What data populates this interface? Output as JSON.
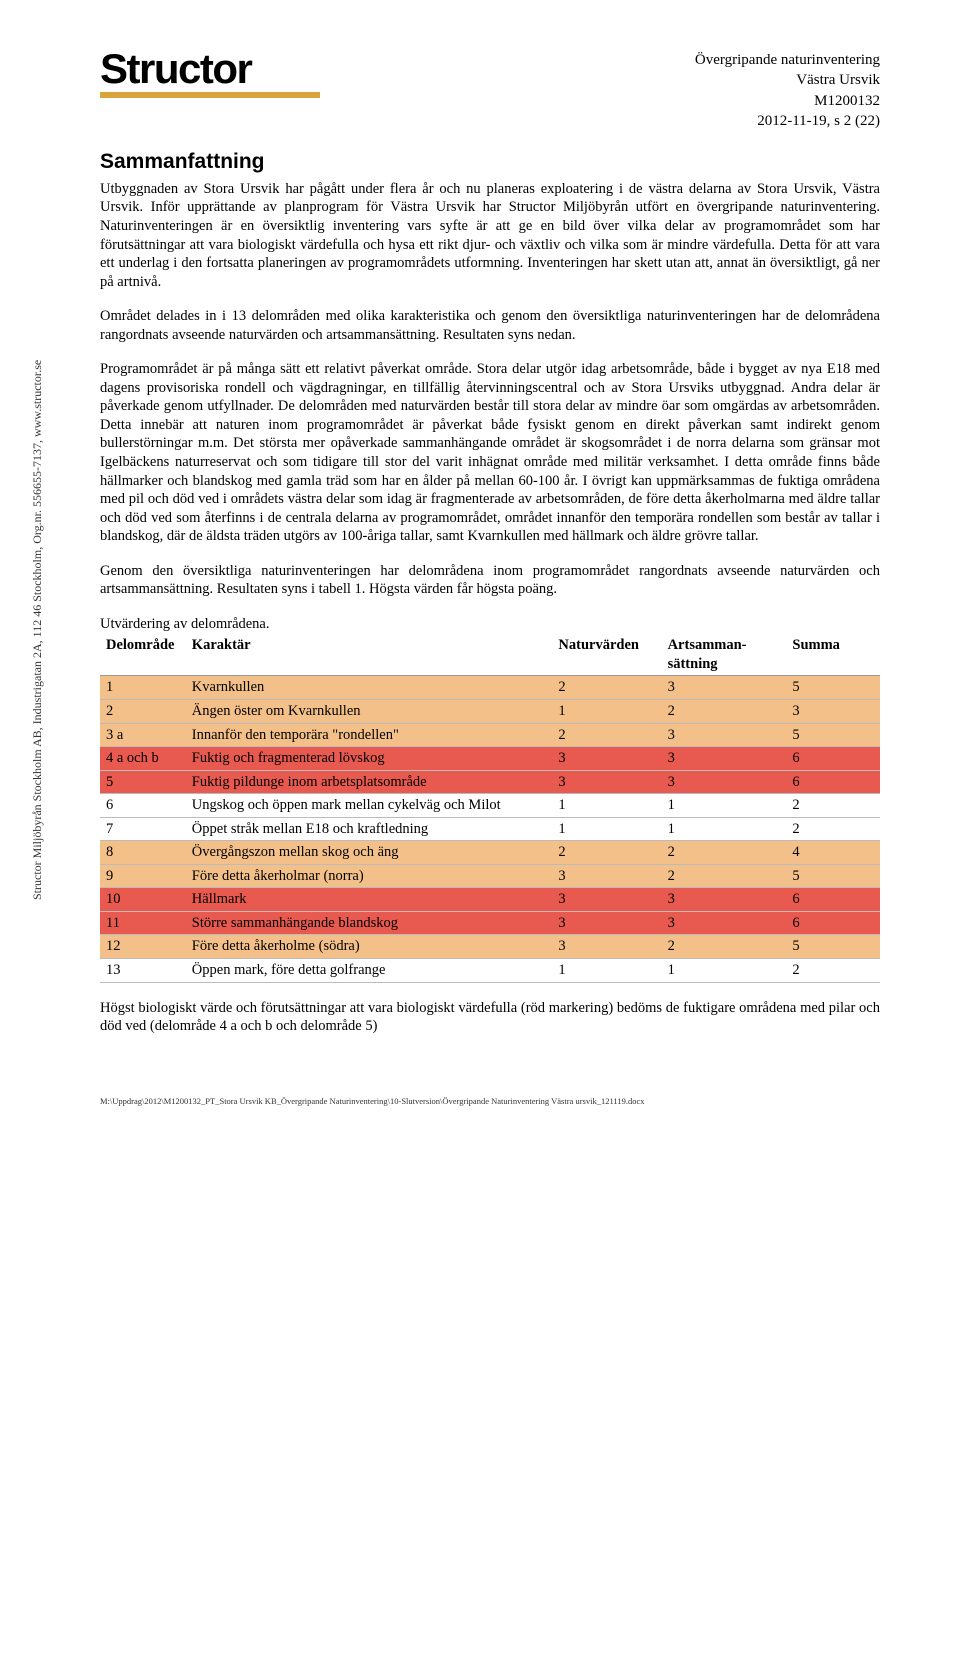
{
  "logo": {
    "text": "Structor"
  },
  "side_text": "Structor Miljöbyrån Stockholm AB, Industrigatan 2A, 112 46 Stockholm, Org.nr. 556655-7137, www.structor.se",
  "header_meta": {
    "line1": "Övergripande naturinventering",
    "line2": "Västra Ursvik",
    "line3": "M1200132",
    "line4": "2012-11-19, s 2 (22)"
  },
  "section_title": "Sammanfattning",
  "paragraphs": {
    "p1": "Utbyggnaden av Stora Ursvik har pågått under flera år och nu planeras exploatering i de västra delarna av Stora Ursvik, Västra Ursvik. Inför upprättande av planprogram för Västra Ursvik har Structor Miljöbyrån utfört en övergripande naturinventering. Naturinventeringen är en översiktlig inventering vars syfte är att ge en bild över vilka delar av programområdet som har förutsättningar att vara biologiskt värdefulla och hysa ett rikt djur- och växtliv och vilka som är mindre värdefulla. Detta för att vara ett underlag i den fortsatta planeringen av programområdets utformning. Inventeringen har skett utan att, annat än översiktligt, gå ner på artnivå.",
    "p2": "Området delades in i 13 delområden med olika karakteristika och genom den översiktliga naturinventeringen har de delområdena rangordnats avseende naturvärden och artsammansättning. Resultaten syns nedan.",
    "p3": "Programområdet är på många sätt ett relativt påverkat område. Stora delar utgör idag arbetsområde, både i bygget av nya E18 med dagens provisoriska rondell och vägdragningar, en tillfällig återvinningscentral och av Stora Ursviks utbyggnad. Andra delar är påverkade genom utfyllnader. De delområden med naturvärden består till stora delar av mindre öar som omgärdas av arbetsområden. Detta innebär att naturen inom programområdet är påverkat både fysiskt genom en direkt påverkan samt indirekt genom bullerstörningar m.m. Det största mer opåverkade sammanhängande området är skogsområdet i de norra delarna som gränsar mot Igelbäckens naturreservat och som tidigare till stor del varit inhägnat område med militär verksamhet. I detta område finns både hällmarker och blandskog med gamla träd som har en ålder på mellan 60-100 år. I övrigt kan uppmärksammas de fuktiga områdena med pil och död ved i områdets västra delar som idag är fragmenterade av arbetsområden, de före detta åkerholmarna med äldre tallar och död ved som återfinns i de centrala delarna av programområdet, området innanför den temporära rondellen som består av tallar i blandskog, där de äldsta träden utgörs av 100-åriga tallar, samt Kvarnkullen med hällmark och äldre grövre tallar.",
    "p4": "Genom den översiktliga naturinventeringen har delområdena inom programområdet rangordnats avseende naturvärden och artsammansättning. Resultaten syns i tabell 1. Högsta värden får högsta poäng.",
    "p5": "Högst biologiskt värde och förutsättningar att vara biologiskt värdefulla (röd markering) bedöms de fuktigare områdena med pilar och död ved (delområde 4 a och b och delområde 5)"
  },
  "table": {
    "caption": "Utvärdering av delområdena.",
    "headers": {
      "c1": "Delområde",
      "c2": "Karaktär",
      "c3": "Naturvärden",
      "c4_a": "Artsamman-",
      "c4_b": "sättning",
      "c5": "Summa"
    },
    "row_colors": {
      "none": "transparent",
      "orange": "#f4c089",
      "red": "#e85a4f"
    },
    "rows": [
      {
        "del": "1",
        "kar": "Kvarnkullen",
        "nat": "2",
        "art": "3",
        "sum": "5",
        "color": "orange"
      },
      {
        "del": "2",
        "kar": "Ängen öster om Kvarnkullen",
        "nat": "1",
        "art": "2",
        "sum": "3",
        "color": "orange"
      },
      {
        "del": "3 a",
        "kar": "Innanför den temporära \"rondellen\"",
        "nat": "2",
        "art": "3",
        "sum": "5",
        "color": "orange"
      },
      {
        "del": "4 a och b",
        "kar": "Fuktig och fragmenterad lövskog",
        "nat": "3",
        "art": "3",
        "sum": "6",
        "color": "red"
      },
      {
        "del": "5",
        "kar": "Fuktig pildunge inom arbetsplatsområde",
        "nat": "3",
        "art": "3",
        "sum": "6",
        "color": "red"
      },
      {
        "del": "6",
        "kar": "Ungskog och öppen mark mellan cykelväg och Milot",
        "nat": "1",
        "art": "1",
        "sum": "2",
        "color": "none"
      },
      {
        "del": "7",
        "kar": "Öppet stråk mellan E18 och kraftledning",
        "nat": "1",
        "art": "1",
        "sum": "2",
        "color": "none"
      },
      {
        "del": "8",
        "kar": "Övergångszon mellan skog och äng",
        "nat": "2",
        "art": "2",
        "sum": "4",
        "color": "orange"
      },
      {
        "del": "9",
        "kar": "Före detta åkerholmar (norra)",
        "nat": "3",
        "art": "2",
        "sum": "5",
        "color": "orange"
      },
      {
        "del": "10",
        "kar": "Hällmark",
        "nat": "3",
        "art": "3",
        "sum": "6",
        "color": "red"
      },
      {
        "del": "11",
        "kar": "Större sammanhängande blandskog",
        "nat": "3",
        "art": "3",
        "sum": "6",
        "color": "red"
      },
      {
        "del": "12",
        "kar": "Före detta åkerholme (södra)",
        "nat": "3",
        "art": "2",
        "sum": "5",
        "color": "orange"
      },
      {
        "del": "13",
        "kar": "Öppen mark, före detta golfrange",
        "nat": "1",
        "art": "1",
        "sum": "2",
        "color": "none"
      }
    ]
  },
  "footer_path": "M:\\Uppdrag\\2012\\M1200132_PT_Stora Ursvik KB_Övergripande Naturinventering\\10-Slutversion\\Övergripande Naturinventering Västra ursvik_121119.docx"
}
